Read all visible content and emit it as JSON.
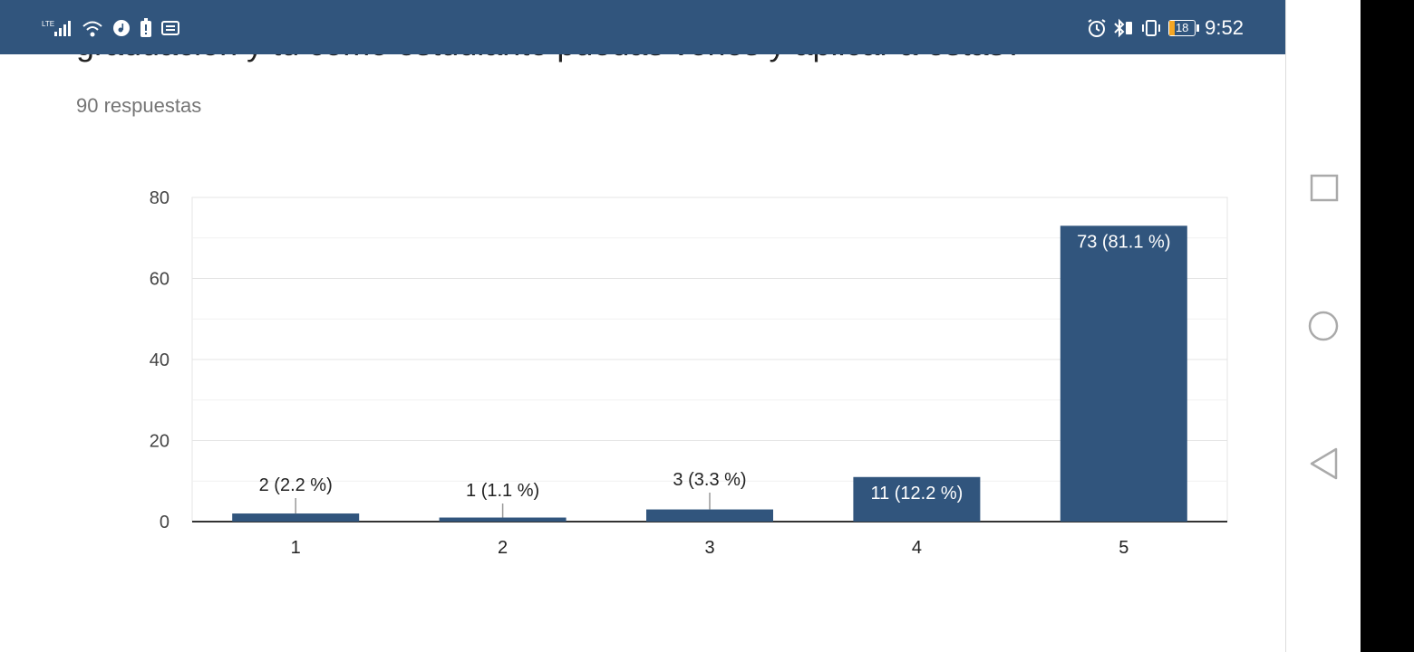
{
  "status_bar": {
    "network": "LTE",
    "icons": [
      "signal-icon",
      "wifi-icon",
      "music-icon",
      "alert-icon",
      "message-icon",
      "alarm-icon",
      "bluetooth-icon",
      "vibrate-icon"
    ],
    "battery": "18",
    "time": "9:52",
    "bg_color": "#31557d"
  },
  "question": {
    "title": "graduación y tú como estudiante puedas verlos y aplicar a estas?"
  },
  "responses": {
    "count_text": "90 respuestas"
  },
  "chart_data": {
    "type": "bar",
    "categories": [
      "1",
      "2",
      "3",
      "4",
      "5"
    ],
    "values": [
      2,
      1,
      3,
      11,
      73
    ],
    "data_labels": [
      "2 (2.2 %)",
      "1 (1.1 %)",
      "3 (3.3 %)",
      "11 (12.2 %)",
      "73 (81.1 %)"
    ],
    "y_ticks": [
      0,
      20,
      40,
      60,
      80
    ],
    "ylim": [
      0,
      80
    ],
    "title": "",
    "xlabel": "",
    "ylabel": "",
    "grid": true,
    "bar_color": "#31557d"
  },
  "nav_bar": {
    "icons": [
      "recents-square-icon",
      "home-circle-icon",
      "back-triangle-icon"
    ]
  }
}
